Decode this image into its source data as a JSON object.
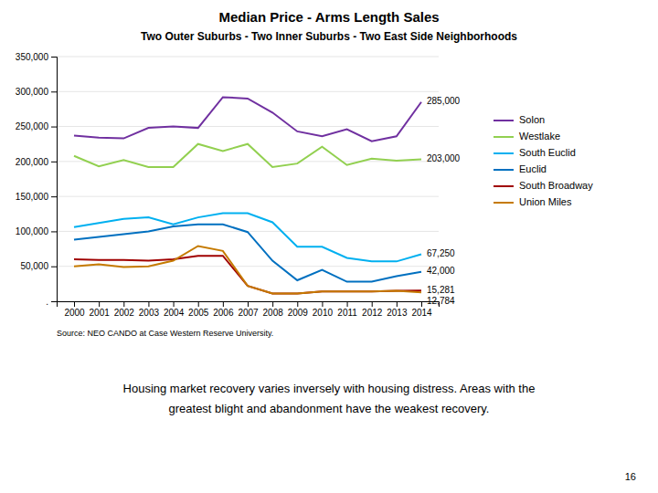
{
  "chart_data": {
    "type": "line",
    "title": "Median Price - Arms Length Sales",
    "subtitle": "Two Outer Suburbs - Two Inner Suburbs - Two East Side Neighborhoods",
    "source": "Source:  NEO CANDO at Case Western Reserve University.",
    "caption": [
      "Housing market recovery varies inversely with housing distress.  Areas with the",
      "greatest blight and abandonment have the weakest recovery."
    ],
    "page_number": "16",
    "x": [
      2000,
      2001,
      2002,
      2003,
      2004,
      2005,
      2006,
      2007,
      2008,
      2009,
      2010,
      2011,
      2012,
      2013,
      2014
    ],
    "series": [
      {
        "name": "Solon",
        "color": "#7030a0",
        "values": [
          237000,
          234000,
          233000,
          248000,
          250000,
          248000,
          292000,
          290000,
          270000,
          243000,
          236000,
          246000,
          229000,
          236000,
          285000
        ]
      },
      {
        "name": "Westlake",
        "color": "#92d050",
        "values": [
          208000,
          193000,
          202000,
          192000,
          192000,
          225000,
          215000,
          225000,
          192000,
          197000,
          221000,
          195000,
          204000,
          201000,
          203000
        ]
      },
      {
        "name": "South Euclid",
        "color": "#00b0f0",
        "values": [
          106000,
          112000,
          118000,
          120000,
          110000,
          120000,
          126000,
          126000,
          113000,
          78000,
          78000,
          62000,
          57000,
          57000,
          67250
        ]
      },
      {
        "name": "Euclid",
        "color": "#0070c0",
        "values": [
          88000,
          92000,
          96000,
          100000,
          107000,
          110000,
          110000,
          99000,
          58000,
          30000,
          45000,
          28000,
          28000,
          36000,
          42000
        ]
      },
      {
        "name": "South Broadway",
        "color": "#a00000",
        "values": [
          60000,
          59000,
          59000,
          58000,
          60000,
          65000,
          65000,
          22000,
          11000,
          11000,
          14000,
          14000,
          14000,
          15000,
          15281
        ]
      },
      {
        "name": "Union Miles",
        "color": "#c57a00",
        "values": [
          50000,
          53000,
          49000,
          50000,
          58000,
          79000,
          72000,
          22000,
          11000,
          11000,
          14000,
          14000,
          14000,
          15000,
          12784
        ]
      }
    ],
    "xlim": [
      1999.3,
      2014.7
    ],
    "xticks": [
      2000,
      2001,
      2002,
      2003,
      2004,
      2005,
      2006,
      2007,
      2008,
      2009,
      2010,
      2011,
      2012,
      2013,
      2014
    ],
    "ylim": [
      0,
      350000
    ],
    "yticks": [
      {
        "value": 0,
        "label": "."
      },
      {
        "value": 50000,
        "label": "50,000"
      },
      {
        "value": 100000,
        "label": "100,000"
      },
      {
        "value": 150000,
        "label": "150,000"
      },
      {
        "value": 200000,
        "label": "200,000"
      },
      {
        "value": 250000,
        "label": "250,000"
      },
      {
        "value": 300000,
        "label": "300,000"
      },
      {
        "value": 350000,
        "label": "350,000"
      }
    ],
    "annotations": [
      {
        "text": "285,000",
        "x": 2014,
        "y": 285000
      },
      {
        "text": "203,000",
        "x": 2014,
        "y": 203000
      },
      {
        "text": "67,250",
        "x": 2014,
        "y": 67250
      },
      {
        "text": "42,000",
        "x": 2014,
        "y": 42000
      },
      {
        "text": "15,281",
        "x": 2014,
        "y": 15281
      },
      {
        "text": "12,784",
        "x": 2014,
        "y": 12784
      }
    ],
    "grid": true,
    "legend": "right"
  }
}
